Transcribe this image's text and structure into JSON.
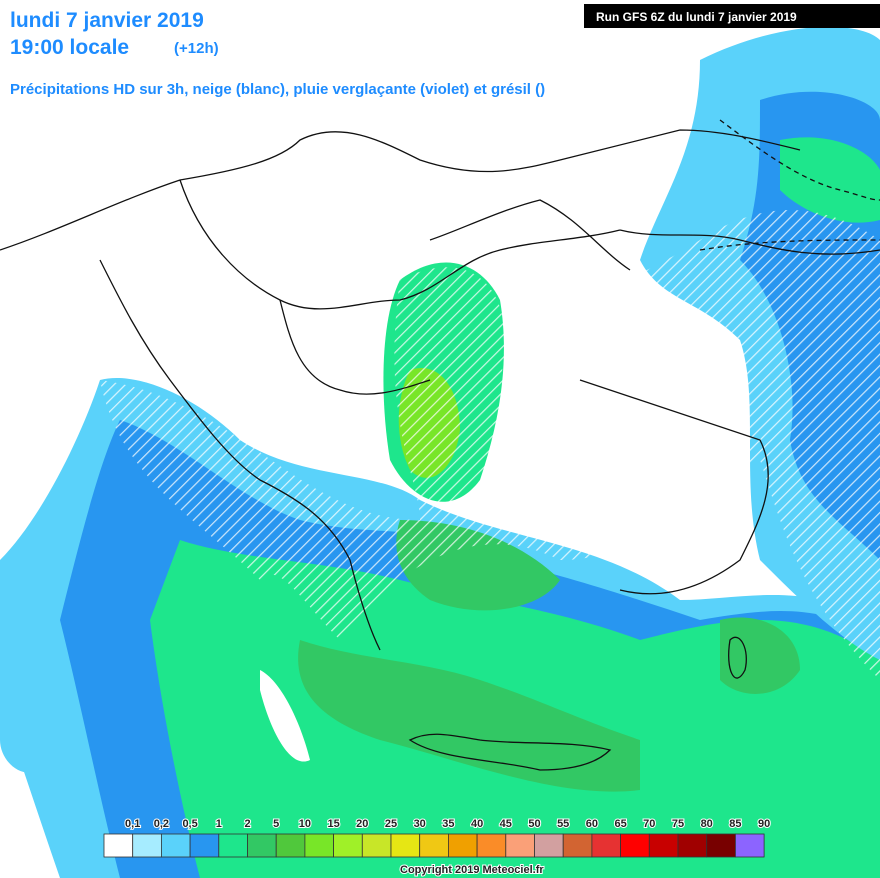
{
  "header": {
    "date": "lundi 7 janvier 2019",
    "time": "19:00 locale",
    "offset": "(+12h)",
    "subtitle": "Précipitations HD sur 3h, neige (blanc), pluie verglaçante (violet) et grésil ()",
    "run": "Run GFS 6Z du lundi 7 janvier 2019"
  },
  "legend": {
    "labels": [
      "0,1",
      "0,2",
      "0,5",
      "1",
      "2",
      "5",
      "10",
      "15",
      "20",
      "25",
      "30",
      "35",
      "40",
      "45",
      "50",
      "55",
      "60",
      "65",
      "70",
      "75",
      "80",
      "85",
      "90"
    ],
    "colors": [
      "#ffffff",
      "#a6ecff",
      "#5ad2fa",
      "#2896f0",
      "#1ee68c",
      "#32c864",
      "#50c83c",
      "#78e628",
      "#a0f028",
      "#c8e628",
      "#e6e614",
      "#f0c814",
      "#f0a000",
      "#fa8c28",
      "#faa078",
      "#d2a0a0",
      "#d26432",
      "#e63232",
      "#ff0000",
      "#c80000",
      "#a00000",
      "#780000",
      "#8c64ff"
    ]
  },
  "footer": {
    "copyright": "Copyright 2019 Meteociel.fr"
  }
}
